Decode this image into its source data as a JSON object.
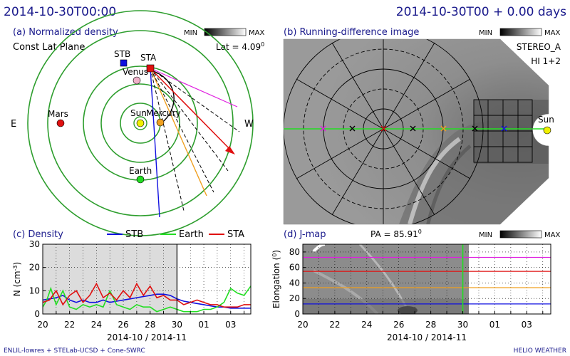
{
  "header": {
    "left_time": "2014-10-30T00:00",
    "right_time": "2014-10-30T00 + 0.00 days"
  },
  "footer": {
    "left": "ENLIL-lowres + STELab-UCSD + Cone-SWRC",
    "right": "HELIO WEATHER"
  },
  "colors": {
    "navy": "#1a1a8c",
    "orbit": "#2e9e2e",
    "stb": "#1010e0",
    "earth": "#22dd22",
    "sta": "#e01010"
  },
  "panel_a": {
    "title": "(a) Normalized density",
    "subtitle": "Const Lat Plane",
    "lat_label": "Lat = 4.09",
    "lat_unit": "0",
    "colorbar": {
      "min": "MIN",
      "max": "MAX"
    },
    "directions": {
      "east": "E",
      "west": "W"
    },
    "bodies": [
      {
        "name": "STB",
        "color": "#1010e0"
      },
      {
        "name": "STA",
        "color": "#e01010"
      },
      {
        "name": "Venus",
        "color": "#f0b0c8"
      },
      {
        "name": "Mars",
        "color": "#e01010"
      },
      {
        "name": "Sun",
        "color": "#f0f000"
      },
      {
        "name": "Mercury",
        "color": "#f0a020"
      },
      {
        "name": "Earth",
        "color": "#22dd22"
      }
    ]
  },
  "panel_b": {
    "title": "(b) Running-difference image",
    "colorbar": {
      "min": "MIN",
      "max": "MAX"
    },
    "instrument_1": "STEREO_A",
    "instrument_2": "HI 1+2",
    "sun_label": "Sun"
  },
  "panel_c": {
    "title": "(c) Density",
    "ylabel": "N (cm",
    "ylabel_sup": "-3",
    "ylabel_end": ")",
    "xlabel": "2014-10 / 2014-11",
    "chart_data": {
      "type": "line",
      "x_ticks": [
        "20",
        "21",
        "22",
        "23",
        "24",
        "25",
        "26",
        "27",
        "28",
        "29",
        "30",
        "31",
        "01",
        "02",
        "03"
      ],
      "x_tick_labels": [
        "20",
        "22",
        "24",
        "26",
        "28",
        "30",
        "01",
        "03"
      ],
      "x_range_days": [
        20,
        35.5
      ],
      "y_range": [
        0,
        30
      ],
      "y_ticks": [
        "0",
        "10",
        "20",
        "30"
      ],
      "shaded_until_day": 30,
      "series": [
        {
          "name": "STB",
          "color": "#1010e0",
          "x": [
            20,
            20.5,
            21,
            21.5,
            22,
            22.5,
            23,
            23.5,
            24,
            24.5,
            25,
            25.5,
            26,
            26.5,
            27,
            27.5,
            28,
            28.5,
            29,
            29.5,
            30,
            30.5,
            31,
            31.5,
            32,
            32.5,
            33,
            33.5,
            34,
            34.5,
            35,
            35.5
          ],
          "y": [
            6,
            6.5,
            7,
            8,
            6,
            5,
            6,
            5,
            5,
            6,
            5,
            5.5,
            6,
            6.5,
            7,
            7.5,
            8,
            8.5,
            8.5,
            8,
            6.5,
            5.5,
            5,
            4.5,
            4,
            3.5,
            3,
            3,
            2.5,
            2.5,
            2.5,
            2.5
          ]
        },
        {
          "name": "Earth",
          "color": "#22dd22",
          "x": [
            20,
            20.3,
            20.6,
            21,
            21.5,
            22,
            22.5,
            23,
            23.5,
            24,
            24.5,
            25,
            25.5,
            26,
            26.5,
            27,
            27.5,
            28,
            28.5,
            29,
            29.5,
            30,
            30.5,
            31,
            31.5,
            32,
            32.5,
            33,
            33.5,
            34,
            34.5,
            35,
            35.5
          ],
          "y": [
            3,
            6,
            11,
            4,
            10,
            3,
            2,
            4,
            3,
            4,
            3,
            10,
            4,
            3,
            2,
            4,
            3,
            3,
            1,
            2,
            3,
            2,
            1,
            1,
            1,
            2,
            2,
            3,
            5,
            11,
            9,
            8,
            12
          ]
        },
        {
          "name": "STA",
          "color": "#e01010",
          "x": [
            20,
            20.5,
            21,
            21.5,
            22,
            22.5,
            23,
            23.5,
            24,
            24.5,
            25,
            25.5,
            26,
            26.5,
            27,
            27.5,
            28,
            28.5,
            29,
            29.5,
            30,
            30.5,
            31,
            31.5,
            32,
            32.5,
            33,
            33.5,
            34,
            34.5,
            35,
            35.5
          ],
          "y": [
            5,
            6,
            10,
            4,
            8,
            10,
            5,
            8,
            13,
            7,
            9,
            6,
            10,
            7,
            13,
            8,
            12,
            7,
            8,
            6,
            6,
            4,
            5,
            6,
            5,
            4,
            4,
            3,
            3,
            3,
            4,
            4
          ]
        }
      ]
    }
  },
  "panel_d": {
    "title": "(d) J-map",
    "pa_label": "PA = 85.91",
    "pa_unit": "0",
    "colorbar": {
      "min": "MIN",
      "max": "MAX"
    },
    "ylabel": "Elongation (",
    "ylabel_sup": "0",
    "ylabel_end": ")",
    "xlabel": "2014-10 / 2014-11",
    "chart_data": {
      "type": "heatmap",
      "x_range_days": [
        20,
        35.5
      ],
      "y_range": [
        0,
        90
      ],
      "y_ticks": [
        "0",
        "20",
        "40",
        "60",
        "80"
      ],
      "x_tick_labels": [
        "20",
        "22",
        "24",
        "26",
        "28",
        "30",
        "01",
        "03"
      ],
      "current_time_day": 30,
      "reference_lines": [
        {
          "elongation": 13,
          "color": "#1010e0"
        },
        {
          "elongation": 34,
          "color": "#f0a020"
        },
        {
          "elongation": 55,
          "color": "#e01010"
        },
        {
          "elongation": 73,
          "color": "#e020e0"
        }
      ]
    }
  }
}
